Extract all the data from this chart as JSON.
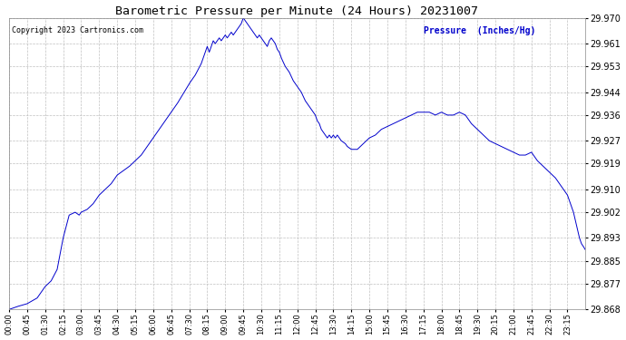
{
  "title": "Barometric Pressure per Minute (24 Hours) 20231007",
  "copyright": "Copyright 2023 Cartronics.com",
  "ylabel": "Pressure  (Inches/Hg)",
  "ylabel_color": "#0000cc",
  "line_color": "#0000cc",
  "bg_color": "#ffffff",
  "grid_color": "#c0c0c0",
  "title_color": "#000000",
  "copyright_color": "#000000",
  "ylim_min": 29.868,
  "ylim_max": 29.97,
  "yticks": [
    29.868,
    29.877,
    29.885,
    29.893,
    29.902,
    29.91,
    29.919,
    29.927,
    29.936,
    29.944,
    29.953,
    29.961,
    29.97
  ],
  "xtick_labels": [
    "00:00",
    "00:45",
    "01:30",
    "02:15",
    "03:00",
    "03:45",
    "04:30",
    "05:15",
    "06:00",
    "06:45",
    "07:30",
    "08:15",
    "09:00",
    "09:45",
    "10:30",
    "11:15",
    "12:00",
    "12:45",
    "13:30",
    "14:15",
    "15:00",
    "15:45",
    "16:30",
    "17:15",
    "18:00",
    "18:45",
    "19:30",
    "20:15",
    "21:00",
    "21:45",
    "22:30",
    "23:15"
  ],
  "key_points": [
    [
      0,
      29.868
    ],
    [
      20,
      29.869
    ],
    [
      45,
      29.87
    ],
    [
      70,
      29.872
    ],
    [
      90,
      29.876
    ],
    [
      105,
      29.878
    ],
    [
      120,
      29.882
    ],
    [
      135,
      29.893
    ],
    [
      150,
      29.901
    ],
    [
      165,
      29.902
    ],
    [
      175,
      29.901
    ],
    [
      180,
      29.902
    ],
    [
      195,
      29.903
    ],
    [
      210,
      29.905
    ],
    [
      225,
      29.908
    ],
    [
      240,
      29.91
    ],
    [
      255,
      29.912
    ],
    [
      270,
      29.915
    ],
    [
      300,
      29.918
    ],
    [
      330,
      29.922
    ],
    [
      360,
      29.928
    ],
    [
      390,
      29.934
    ],
    [
      420,
      29.94
    ],
    [
      450,
      29.947
    ],
    [
      465,
      29.95
    ],
    [
      480,
      29.954
    ],
    [
      490,
      29.958
    ],
    [
      495,
      29.96
    ],
    [
      500,
      29.958
    ],
    [
      505,
      29.96
    ],
    [
      510,
      29.962
    ],
    [
      515,
      29.961
    ],
    [
      520,
      29.962
    ],
    [
      525,
      29.963
    ],
    [
      530,
      29.962
    ],
    [
      535,
      29.963
    ],
    [
      540,
      29.964
    ],
    [
      545,
      29.963
    ],
    [
      550,
      29.964
    ],
    [
      555,
      29.965
    ],
    [
      560,
      29.964
    ],
    [
      565,
      29.965
    ],
    [
      570,
      29.966
    ],
    [
      575,
      29.967
    ],
    [
      580,
      29.968
    ],
    [
      585,
      29.97
    ],
    [
      590,
      29.969
    ],
    [
      595,
      29.968
    ],
    [
      600,
      29.967
    ],
    [
      605,
      29.966
    ],
    [
      610,
      29.965
    ],
    [
      615,
      29.964
    ],
    [
      620,
      29.963
    ],
    [
      625,
      29.964
    ],
    [
      630,
      29.963
    ],
    [
      635,
      29.962
    ],
    [
      640,
      29.961
    ],
    [
      645,
      29.96
    ],
    [
      650,
      29.962
    ],
    [
      655,
      29.963
    ],
    [
      660,
      29.962
    ],
    [
      665,
      29.961
    ],
    [
      670,
      29.959
    ],
    [
      675,
      29.958
    ],
    [
      680,
      29.956
    ],
    [
      690,
      29.953
    ],
    [
      700,
      29.951
    ],
    [
      710,
      29.948
    ],
    [
      720,
      29.946
    ],
    [
      730,
      29.944
    ],
    [
      740,
      29.941
    ],
    [
      750,
      29.939
    ],
    [
      760,
      29.937
    ],
    [
      765,
      29.936
    ],
    [
      770,
      29.934
    ],
    [
      775,
      29.933
    ],
    [
      780,
      29.931
    ],
    [
      785,
      29.93
    ],
    [
      790,
      29.929
    ],
    [
      795,
      29.928
    ],
    [
      800,
      29.929
    ],
    [
      805,
      29.928
    ],
    [
      810,
      29.929
    ],
    [
      815,
      29.928
    ],
    [
      820,
      29.929
    ],
    [
      825,
      29.928
    ],
    [
      830,
      29.927
    ],
    [
      840,
      29.926
    ],
    [
      845,
      29.925
    ],
    [
      855,
      29.924
    ],
    [
      870,
      29.924
    ],
    [
      885,
      29.926
    ],
    [
      900,
      29.928
    ],
    [
      915,
      29.929
    ],
    [
      930,
      29.931
    ],
    [
      945,
      29.932
    ],
    [
      960,
      29.933
    ],
    [
      975,
      29.934
    ],
    [
      990,
      29.935
    ],
    [
      1005,
      29.936
    ],
    [
      1020,
      29.937
    ],
    [
      1035,
      29.937
    ],
    [
      1050,
      29.937
    ],
    [
      1065,
      29.936
    ],
    [
      1080,
      29.937
    ],
    [
      1095,
      29.936
    ],
    [
      1110,
      29.936
    ],
    [
      1125,
      29.937
    ],
    [
      1140,
      29.936
    ],
    [
      1155,
      29.933
    ],
    [
      1170,
      29.931
    ],
    [
      1185,
      29.929
    ],
    [
      1200,
      29.927
    ],
    [
      1215,
      29.926
    ],
    [
      1230,
      29.925
    ],
    [
      1245,
      29.924
    ],
    [
      1260,
      29.923
    ],
    [
      1275,
      29.922
    ],
    [
      1290,
      29.922
    ],
    [
      1305,
      29.923
    ],
    [
      1315,
      29.921
    ],
    [
      1320,
      29.92
    ],
    [
      1335,
      29.918
    ],
    [
      1350,
      29.916
    ],
    [
      1365,
      29.914
    ],
    [
      1375,
      29.912
    ],
    [
      1385,
      29.91
    ],
    [
      1395,
      29.908
    ],
    [
      1400,
      29.906
    ],
    [
      1405,
      29.904
    ],
    [
      1410,
      29.902
    ],
    [
      1415,
      29.899
    ],
    [
      1420,
      29.896
    ],
    [
      1425,
      29.893
    ],
    [
      1430,
      29.891
    ],
    [
      1435,
      29.89
    ],
    [
      1439,
      29.889
    ]
  ]
}
